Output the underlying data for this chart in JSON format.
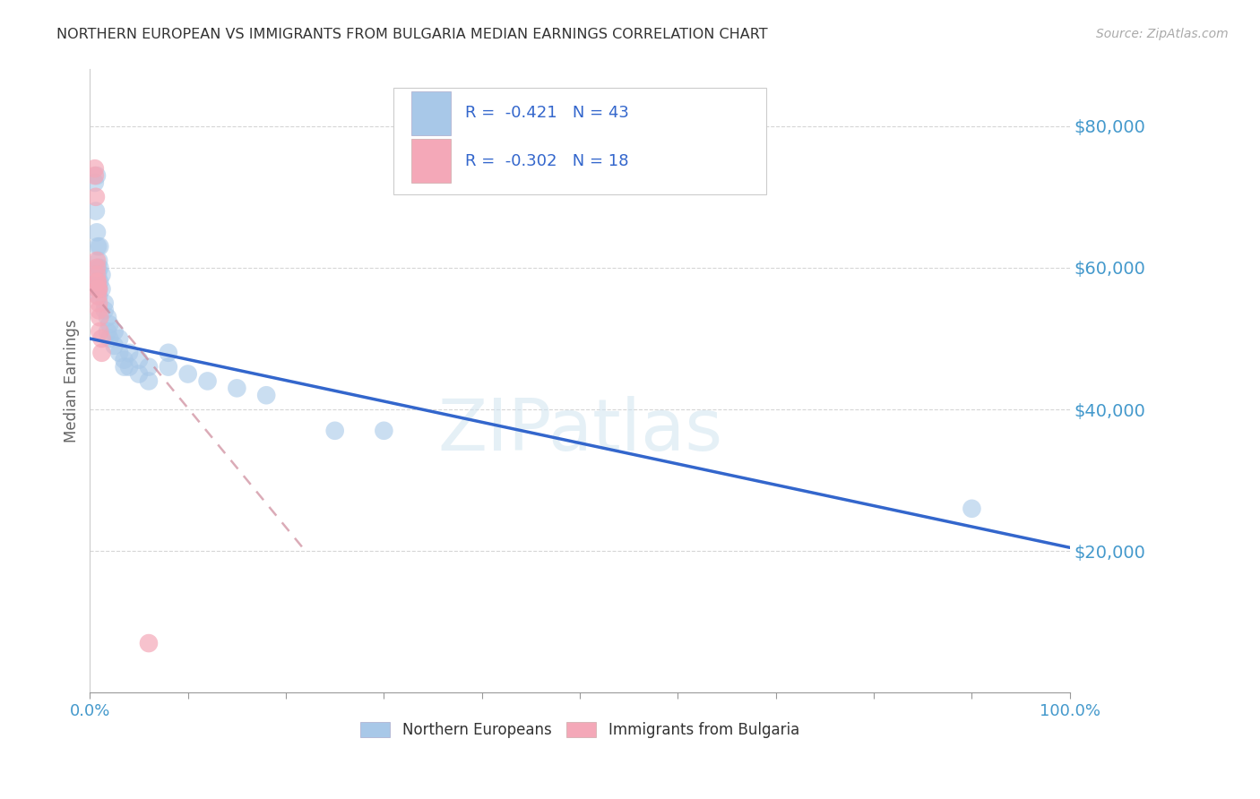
{
  "title": "NORTHERN EUROPEAN VS IMMIGRANTS FROM BULGARIA MEDIAN EARNINGS CORRELATION CHART",
  "source": "Source: ZipAtlas.com",
  "ylabel": "Median Earnings",
  "watermark": "ZIPatlas",
  "legend_blue_r_val": "-0.421",
  "legend_blue_n_val": "43",
  "legend_pink_r_val": "-0.302",
  "legend_pink_n_val": "18",
  "y_ticks": [
    20000,
    40000,
    60000,
    80000
  ],
  "y_tick_labels": [
    "$20,000",
    "$40,000",
    "$60,000",
    "$80,000"
  ],
  "ylim": [
    0,
    88000
  ],
  "xlim": [
    0,
    1.0
  ],
  "x_tick_labels_ends": [
    "0.0%",
    "100.0%"
  ],
  "x_ticks": [
    0,
    0.1,
    0.2,
    0.3,
    0.4,
    0.5,
    0.6,
    0.7,
    0.8,
    0.9,
    1.0
  ],
  "blue_color": "#a8c8e8",
  "blue_line_color": "#3366cc",
  "pink_color": "#f4a8b8",
  "pink_line_color": "#cc8899",
  "grid_color": "#cccccc",
  "title_color": "#333333",
  "axis_label_color": "#666666",
  "ytick_color": "#4499cc",
  "xtick_color": "#4499cc",
  "blue_scatter": [
    [
      0.005,
      72000
    ],
    [
      0.006,
      68000
    ],
    [
      0.007,
      73000
    ],
    [
      0.007,
      65000
    ],
    [
      0.008,
      63000
    ],
    [
      0.008,
      60000
    ],
    [
      0.008,
      59000
    ],
    [
      0.008,
      58000
    ],
    [
      0.009,
      61000
    ],
    [
      0.009,
      57000
    ],
    [
      0.009,
      56000
    ],
    [
      0.01,
      63000
    ],
    [
      0.01,
      60000
    ],
    [
      0.01,
      58000
    ],
    [
      0.012,
      59000
    ],
    [
      0.012,
      57000
    ],
    [
      0.015,
      55000
    ],
    [
      0.015,
      54000
    ],
    [
      0.018,
      53000
    ],
    [
      0.018,
      51000
    ],
    [
      0.02,
      52000
    ],
    [
      0.02,
      50000
    ],
    [
      0.025,
      51000
    ],
    [
      0.025,
      49000
    ],
    [
      0.03,
      50000
    ],
    [
      0.03,
      48000
    ],
    [
      0.035,
      47000
    ],
    [
      0.035,
      46000
    ],
    [
      0.04,
      48000
    ],
    [
      0.04,
      46000
    ],
    [
      0.05,
      47000
    ],
    [
      0.05,
      45000
    ],
    [
      0.06,
      46000
    ],
    [
      0.06,
      44000
    ],
    [
      0.08,
      48000
    ],
    [
      0.08,
      46000
    ],
    [
      0.1,
      45000
    ],
    [
      0.12,
      44000
    ],
    [
      0.15,
      43000
    ],
    [
      0.18,
      42000
    ],
    [
      0.25,
      37000
    ],
    [
      0.3,
      37000
    ],
    [
      0.9,
      26000
    ]
  ],
  "pink_scatter": [
    [
      0.005,
      74000
    ],
    [
      0.005,
      73000
    ],
    [
      0.006,
      70000
    ],
    [
      0.007,
      61000
    ],
    [
      0.007,
      60000
    ],
    [
      0.007,
      59000
    ],
    [
      0.007,
      58000
    ],
    [
      0.008,
      58000
    ],
    [
      0.008,
      57000
    ],
    [
      0.008,
      56000
    ],
    [
      0.009,
      57000
    ],
    [
      0.009,
      55000
    ],
    [
      0.009,
      54000
    ],
    [
      0.01,
      53000
    ],
    [
      0.01,
      51000
    ],
    [
      0.012,
      50000
    ],
    [
      0.012,
      48000
    ],
    [
      0.06,
      7000
    ]
  ],
  "blue_line_x": [
    0.0,
    1.0
  ],
  "blue_line_y": [
    50000,
    20500
  ],
  "pink_line_x": [
    0.0,
    0.22
  ],
  "pink_line_y": [
    57000,
    20000
  ],
  "fig_width": 14.06,
  "fig_height": 8.92,
  "dpi": 100
}
